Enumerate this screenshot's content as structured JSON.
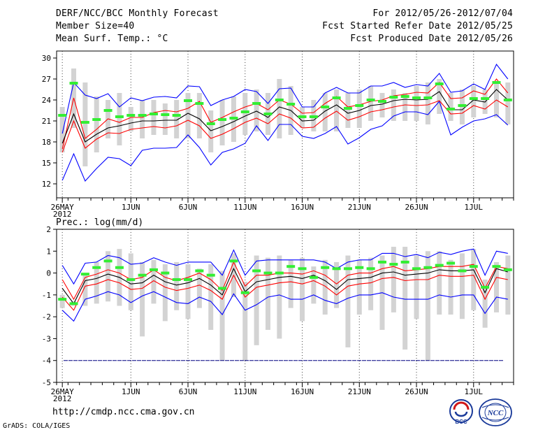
{
  "header": {
    "title": "DERF/NCC/BCC Monthly Forecast",
    "member_size": "Member Size=40",
    "variable_upper": "Mean Surf. Temp.: °C",
    "forecast_range": "For 2012/05/26-2012/07/04",
    "refer_date": "Fcst Started Refer Date 2012/05/25",
    "produced_date": "Fcst Produced Date 2012/05/26"
  },
  "footer": {
    "url": "http://cmdp.ncc.cma.gov.cn",
    "credit": "GrADS: COLA/IGES",
    "logo_left_text": "BCC",
    "logo_right_text": "NCC"
  },
  "colors": {
    "max_min": "#0000ff",
    "spread": "#ff0000",
    "mean": "#000000",
    "box": "#d3d3d3",
    "obs": "#33ee33",
    "reference": "#000080",
    "grid": "#444444"
  },
  "chart_data": [
    {
      "type": "box",
      "title": "Mean Surf. Temp.: °C",
      "ylim": [
        10,
        31
      ],
      "yticks": [
        12,
        15,
        18,
        21,
        24,
        27,
        30
      ],
      "xlabel_year": "2012",
      "xticks": [
        {
          "day": 1,
          "label": "26MAY"
        },
        {
          "day": 7,
          "label": "1JUN"
        },
        {
          "day": 12,
          "label": "6JUN"
        },
        {
          "day": 17,
          "label": "11JUN"
        },
        {
          "day": 22,
          "label": "16JUN"
        },
        {
          "day": 27,
          "label": "21JUN"
        },
        {
          "day": 32,
          "label": "26JUN"
        },
        {
          "day": 37,
          "label": "1JUL"
        }
      ],
      "series": [
        {
          "name": "max",
          "values": [
            19.2,
            26.5,
            24.7,
            24.2,
            24.9,
            23,
            24.3,
            23.9,
            24.4,
            24.5,
            24.3,
            26,
            25.9,
            23.2,
            24,
            24.5,
            25.5,
            25.2,
            23.5,
            25.6,
            25.7,
            23,
            23,
            25,
            25.8,
            25,
            25,
            26,
            26,
            26.5,
            25.8,
            26.2,
            26,
            27.8,
            25.1,
            25.3,
            26.3,
            25.5,
            29.1,
            27
          ]
        },
        {
          "name": "upper",
          "values": [
            17,
            24.3,
            18.5,
            19.8,
            21.3,
            20.8,
            21.5,
            21.5,
            22.2,
            22.5,
            22.3,
            22.8,
            23.8,
            20.8,
            21.5,
            22.3,
            23,
            23.5,
            22.6,
            24,
            23.4,
            22.1,
            22.2,
            23.5,
            24.5,
            23,
            23.3,
            23.8,
            24,
            24.6,
            24.8,
            25.1,
            25,
            26.5,
            24.2,
            24.3,
            25.3,
            24.8,
            27,
            25
          ]
        },
        {
          "name": "mean",
          "values": [
            17.8,
            22,
            18,
            19.1,
            20,
            20.3,
            20.7,
            21,
            21,
            21.1,
            21.1,
            22.1,
            21.3,
            19.6,
            20.2,
            20.9,
            21.7,
            22.4,
            21.5,
            23,
            22.5,
            21,
            21.1,
            22.4,
            23.3,
            22.1,
            22.5,
            23.2,
            23.4,
            23.9,
            24.1,
            24,
            24.1,
            25.2,
            22.6,
            22.6,
            24,
            23.7,
            25.5,
            24
          ]
        },
        {
          "name": "lower",
          "values": [
            16.5,
            21,
            17.1,
            18.4,
            19.3,
            19.2,
            19.8,
            20,
            20.2,
            20,
            20.3,
            21.1,
            20.3,
            18.5,
            19.1,
            19.9,
            20.8,
            21.4,
            20.6,
            22,
            21.4,
            20,
            20.1,
            21.4,
            22.4,
            21.1,
            21.6,
            22.3,
            22.6,
            23,
            23.3,
            23.2,
            23.3,
            23.9,
            22,
            22.1,
            23.2,
            22.7,
            24,
            23
          ]
        },
        {
          "name": "min",
          "values": [
            12.5,
            16.3,
            12.4,
            14.2,
            15.8,
            15.6,
            14.6,
            16.8,
            17.1,
            17.1,
            17.2,
            19,
            17.2,
            14.7,
            16.5,
            17,
            17.8,
            20.3,
            18.2,
            20.5,
            20.5,
            18.8,
            18.5,
            19.2,
            20.2,
            17.7,
            18.6,
            19.8,
            20.3,
            21.7,
            22.3,
            22.3,
            21.9,
            23.8,
            19,
            20.1,
            21,
            21.3,
            21.9,
            20.4
          ]
        },
        {
          "name": "box_high",
          "values": [
            23,
            28.5,
            26.5,
            24.5,
            24,
            25,
            23,
            24,
            24,
            23.5,
            24,
            25,
            25,
            22.5,
            24,
            24.5,
            25,
            25.5,
            25,
            27,
            26,
            23,
            24,
            25,
            25.5,
            25,
            25.5,
            26,
            25,
            25.5,
            25,
            26,
            26.5,
            27,
            25,
            25.5,
            26,
            25.5,
            26.5,
            26.5
          ]
        },
        {
          "name": "box_low",
          "values": [
            16.5,
            20,
            14.5,
            16.5,
            18.5,
            17.5,
            19.5,
            18.5,
            19,
            19,
            18.5,
            18.5,
            18.5,
            16.5,
            17.5,
            18,
            19,
            19.5,
            19,
            18.5,
            19,
            20,
            19.5,
            19.5,
            19.5,
            20,
            20,
            21,
            21.5,
            21,
            21,
            21,
            20.5,
            22,
            21,
            20.5,
            21.5,
            22,
            21.5,
            20.5
          ]
        },
        {
          "name": "observed",
          "values": [
            21.8,
            26.4,
            20.8,
            21.2,
            22.5,
            21.6,
            21.8,
            21.8,
            22,
            21.9,
            21.8,
            23.9,
            23.5,
            20.6,
            21.2,
            21.4,
            22.3,
            23.5,
            22,
            24,
            23.4,
            21.6,
            21.6,
            23,
            24.3,
            22.8,
            23.2,
            24,
            23.8,
            24.4,
            24.5,
            24.3,
            24.3,
            26.3,
            22.7,
            23.2,
            24.2,
            24.2,
            26.5,
            24
          ]
        }
      ]
    },
    {
      "type": "box",
      "title": "Prec.: log(mm/d)",
      "ylim": [
        -5,
        2
      ],
      "yticks": [
        -5,
        -4,
        -3,
        -2,
        -1,
        0,
        1,
        2
      ],
      "reference_value": -4,
      "xlabel_year": "2012",
      "xticks": [
        {
          "day": 1,
          "label": "26MAY"
        },
        {
          "day": 7,
          "label": "1JUN"
        },
        {
          "day": 12,
          "label": "6JUN"
        },
        {
          "day": 17,
          "label": "11JUN"
        },
        {
          "day": 22,
          "label": "16JUN"
        },
        {
          "day": 27,
          "label": "21JUN"
        },
        {
          "day": 32,
          "label": "26JUN"
        },
        {
          "day": 37,
          "label": "1JUL"
        }
      ],
      "series": [
        {
          "name": "max",
          "values": [
            0.35,
            -0.5,
            0.45,
            0.5,
            0.8,
            0.7,
            0.4,
            0.45,
            0.7,
            0.5,
            0.35,
            0.5,
            0.5,
            0.5,
            -0.1,
            1.05,
            -0.1,
            0.55,
            0.6,
            0.6,
            0.6,
            0.6,
            0.6,
            0.5,
            0.2,
            0.5,
            0.6,
            0.6,
            0.9,
            0.9,
            0.75,
            0.85,
            0.7,
            0.95,
            0.85,
            1,
            1.1,
            -0.1,
            1,
            0.9
          ]
        },
        {
          "name": "upper",
          "values": [
            -0.3,
            -1.2,
            -0.2,
            -0.05,
            0.15,
            0,
            -0.3,
            -0.2,
            0.15,
            -0.2,
            -0.35,
            -0.2,
            0,
            -0.3,
            -0.8,
            0.5,
            -0.6,
            -0.1,
            -0.1,
            0,
            0,
            -0.05,
            0.1,
            -0.1,
            -0.5,
            -0.1,
            0,
            0,
            0.2,
            0.3,
            0.1,
            0.15,
            0.2,
            0.3,
            0.3,
            0.3,
            0.4,
            -0.7,
            0.3,
            0.2
          ]
        },
        {
          "name": "mean",
          "values": [
            -0.7,
            -1.4,
            -0.35,
            -0.25,
            -0.05,
            -0.2,
            -0.5,
            -0.45,
            -0.1,
            -0.4,
            -0.55,
            -0.45,
            -0.25,
            -0.55,
            -1,
            0.2,
            -0.85,
            -0.4,
            -0.3,
            -0.2,
            -0.15,
            -0.25,
            -0.1,
            -0.35,
            -0.75,
            -0.3,
            -0.25,
            -0.2,
            0,
            0.05,
            -0.1,
            -0.05,
            0,
            0.15,
            0.1,
            0.1,
            0.15,
            -0.9,
            0.2,
            0.05
          ]
        },
        {
          "name": "lower",
          "values": [
            -1.1,
            -1.7,
            -0.6,
            -0.5,
            -0.3,
            -0.45,
            -0.75,
            -0.7,
            -0.35,
            -0.65,
            -0.8,
            -0.7,
            -0.55,
            -0.8,
            -1.2,
            -0.1,
            -1.1,
            -0.65,
            -0.55,
            -0.45,
            -0.4,
            -0.5,
            -0.35,
            -0.6,
            -1,
            -0.6,
            -0.5,
            -0.45,
            -0.25,
            -0.2,
            -0.35,
            -0.3,
            -0.3,
            -0.1,
            -0.15,
            -0.15,
            -0.1,
            -1.2,
            -0.2,
            -0.3
          ]
        },
        {
          "name": "min",
          "values": [
            -1.7,
            -2.2,
            -1.2,
            -1.05,
            -0.85,
            -1,
            -1.35,
            -1.05,
            -0.85,
            -1.1,
            -1.35,
            -1.4,
            -1.1,
            -1.3,
            -1.9,
            -0.95,
            -1.7,
            -1.45,
            -1.1,
            -1,
            -1.2,
            -1.2,
            -1,
            -1.25,
            -1.4,
            -1.15,
            -1,
            -1,
            -0.9,
            -1.1,
            -1.2,
            -1.2,
            -1.2,
            -1,
            -1.1,
            -1,
            -1,
            -1.85,
            -1.1,
            -1.2
          ]
        },
        {
          "name": "box_high",
          "values": [
            -1,
            -1.3,
            0,
            0.5,
            1,
            1.1,
            0.9,
            0.5,
            0.6,
            0.4,
            0.5,
            0.4,
            0.2,
            0.4,
            0.1,
            0.9,
            -0.4,
            0.8,
            0.7,
            0.8,
            0.6,
            0.7,
            0.3,
            0.6,
            0.5,
            0.8,
            0.6,
            0.7,
            0.8,
            1.2,
            1.2,
            0.8,
            1,
            1,
            0.6,
            0.9,
            1.1,
            -0.3,
            0.5,
            0.8
          ]
        },
        {
          "name": "box_low",
          "values": [
            -1.6,
            -1.5,
            -1.5,
            -1.4,
            -1.3,
            -1.5,
            -1.7,
            -2.9,
            -1.4,
            -2.2,
            -1.7,
            -2.1,
            -1.6,
            -2.6,
            -4,
            -1.1,
            -4,
            -3.3,
            -2.6,
            -3,
            -1.6,
            -2.2,
            -1.4,
            -1.9,
            -1.6,
            -3.4,
            -1.9,
            -1.7,
            -2.6,
            -1.8,
            -3.5,
            -2.1,
            -4,
            -1.9,
            -1.9,
            -2.1,
            -1.7,
            -2.5,
            -1.8,
            -1.9
          ]
        },
        {
          "name": "observed",
          "values": [
            -1.2,
            -1.4,
            -0.05,
            0.25,
            0.55,
            0.25,
            -0.3,
            -0.1,
            0.15,
            0,
            -0.3,
            -0.3,
            0.1,
            -0.1,
            -0.7,
            0.55,
            -0.9,
            0.1,
            0,
            0,
            0.3,
            0.2,
            -0.2,
            0.25,
            0.2,
            0.2,
            0.25,
            0.2,
            0.5,
            0.4,
            0.5,
            0.2,
            0.25,
            0.35,
            0.45,
            0.1,
            0.3,
            -0.65,
            0.3,
            0.15
          ]
        }
      ]
    }
  ]
}
